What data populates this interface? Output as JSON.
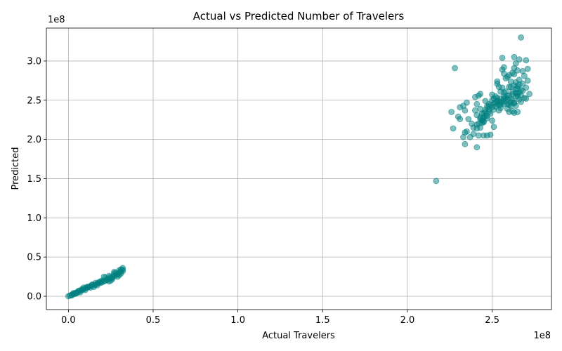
{
  "chart_data": {
    "type": "scatter",
    "title": "Actual vs Predicted Number of Travelers",
    "xlabel": "Actual Travelers",
    "ylabel": "Predicted",
    "x_offset_label": "1e8",
    "y_offset_label": "1e8",
    "xlim": [
      -0.13,
      2.85
    ],
    "ylim": [
      -0.17,
      3.42
    ],
    "x_ticks": [
      0.0,
      0.5,
      1.0,
      1.5,
      2.0,
      2.5
    ],
    "x_tick_labels": [
      "0.0",
      "0.5",
      "1.0",
      "1.5",
      "2.0",
      "2.5"
    ],
    "y_ticks": [
      0.0,
      0.5,
      1.0,
      1.5,
      2.0,
      2.5,
      3.0
    ],
    "y_tick_labels": [
      "0.0",
      "0.5",
      "1.0",
      "1.5",
      "2.0",
      "2.5",
      "3.0"
    ],
    "grid": true,
    "marker_color": "#008080",
    "marker_opacity": 0.5,
    "series": [
      {
        "points": [
          [
            0.0,
            0.0
          ],
          [
            0.01,
            0.01
          ],
          [
            0.02,
            0.02
          ],
          [
            0.03,
            0.03
          ],
          [
            0.04,
            0.04
          ],
          [
            0.05,
            0.05
          ],
          [
            0.06,
            0.06
          ],
          [
            0.07,
            0.07
          ],
          [
            0.08,
            0.08
          ],
          [
            0.09,
            0.09
          ],
          [
            0.1,
            0.1
          ],
          [
            0.11,
            0.11
          ],
          [
            0.12,
            0.12
          ],
          [
            0.13,
            0.13
          ],
          [
            0.14,
            0.14
          ],
          [
            0.15,
            0.14
          ],
          [
            0.16,
            0.15
          ],
          [
            0.17,
            0.16
          ],
          [
            0.18,
            0.17
          ],
          [
            0.19,
            0.17
          ],
          [
            0.2,
            0.18
          ],
          [
            0.21,
            0.19
          ],
          [
            0.22,
            0.2
          ],
          [
            0.23,
            0.21
          ],
          [
            0.24,
            0.22
          ],
          [
            0.25,
            0.23
          ],
          [
            0.26,
            0.24
          ],
          [
            0.27,
            0.26
          ],
          [
            0.28,
            0.27
          ],
          [
            0.29,
            0.28
          ],
          [
            0.3,
            0.3
          ],
          [
            0.31,
            0.32
          ],
          [
            0.32,
            0.34
          ],
          [
            0.32,
            0.36
          ],
          [
            0.31,
            0.34
          ],
          [
            0.3,
            0.33
          ],
          [
            0.28,
            0.3
          ],
          [
            0.27,
            0.29
          ],
          [
            0.25,
            0.25
          ],
          [
            0.24,
            0.26
          ],
          [
            0.23,
            0.22
          ],
          [
            0.22,
            0.24
          ],
          [
            0.21,
            0.25
          ],
          [
            0.2,
            0.2
          ],
          [
            0.18,
            0.18
          ],
          [
            0.16,
            0.17
          ],
          [
            0.15,
            0.12
          ],
          [
            0.14,
            0.15
          ],
          [
            0.12,
            0.12
          ],
          [
            0.11,
            0.12
          ],
          [
            0.09,
            0.11
          ],
          [
            0.08,
            0.09
          ],
          [
            0.06,
            0.07
          ],
          [
            0.05,
            0.04
          ],
          [
            0.03,
            0.04
          ],
          [
            0.02,
            0.01
          ],
          [
            0.29,
            0.25
          ],
          [
            0.26,
            0.22
          ],
          [
            0.24,
            0.19
          ],
          [
            0.3,
            0.27
          ],
          [
            0.27,
            0.31
          ],
          [
            0.25,
            0.2
          ],
          [
            0.19,
            0.19
          ],
          [
            0.13,
            0.11
          ],
          [
            0.1,
            0.08
          ],
          [
            0.07,
            0.05
          ],
          [
            0.04,
            0.03
          ],
          [
            0.17,
            0.14
          ],
          [
            0.31,
            0.29
          ],
          [
            0.32,
            0.32
          ],
          [
            2.17,
            1.47
          ],
          [
            2.28,
            2.91
          ],
          [
            2.26,
            2.35
          ],
          [
            2.27,
            2.14
          ],
          [
            2.3,
            2.29
          ],
          [
            2.31,
            2.41
          ],
          [
            2.31,
            2.26
          ],
          [
            2.33,
            2.43
          ],
          [
            2.33,
            2.03
          ],
          [
            2.34,
            2.09
          ],
          [
            2.34,
            1.94
          ],
          [
            2.34,
            2.37
          ],
          [
            2.35,
            2.47
          ],
          [
            2.35,
            2.1
          ],
          [
            2.36,
            2.26
          ],
          [
            2.37,
            2.03
          ],
          [
            2.38,
            2.2
          ],
          [
            2.39,
            2.07
          ],
          [
            2.39,
            2.15
          ],
          [
            2.4,
            2.37
          ],
          [
            2.4,
            2.54
          ],
          [
            2.41,
            2.45
          ],
          [
            2.41,
            2.31
          ],
          [
            2.41,
            1.9
          ],
          [
            2.41,
            2.14
          ],
          [
            2.41,
            2.19
          ],
          [
            2.42,
            2.05
          ],
          [
            2.42,
            2.56
          ],
          [
            2.43,
            2.39
          ],
          [
            2.43,
            2.26
          ],
          [
            2.43,
            2.28
          ],
          [
            2.43,
            2.58
          ],
          [
            2.44,
            2.24
          ],
          [
            2.44,
            2.21
          ],
          [
            2.44,
            2.33
          ],
          [
            2.45,
            2.23
          ],
          [
            2.45,
            2.28
          ],
          [
            2.45,
            2.22
          ],
          [
            2.45,
            2.05
          ],
          [
            2.46,
            2.35
          ],
          [
            2.46,
            2.3
          ],
          [
            2.46,
            2.49
          ],
          [
            2.47,
            2.27
          ],
          [
            2.47,
            2.42
          ],
          [
            2.47,
            2.05
          ],
          [
            2.48,
            2.38
          ],
          [
            2.48,
            2.45
          ],
          [
            2.48,
            2.35
          ],
          [
            2.49,
            2.06
          ],
          [
            2.49,
            2.44
          ],
          [
            2.5,
            2.24
          ],
          [
            2.5,
            2.41
          ],
          [
            2.5,
            2.57
          ],
          [
            2.51,
            2.38
          ],
          [
            2.51,
            2.52
          ],
          [
            2.51,
            2.16
          ],
          [
            2.52,
            2.42
          ],
          [
            2.52,
            2.47
          ],
          [
            2.53,
            2.74
          ],
          [
            2.53,
            2.71
          ],
          [
            2.53,
            2.53
          ],
          [
            2.54,
            2.49
          ],
          [
            2.54,
            2.37
          ],
          [
            2.54,
            2.67
          ],
          [
            2.55,
            2.4
          ],
          [
            2.55,
            2.52
          ],
          [
            2.55,
            2.61
          ],
          [
            2.56,
            3.04
          ],
          [
            2.56,
            2.89
          ],
          [
            2.56,
            2.66
          ],
          [
            2.57,
            2.84
          ],
          [
            2.57,
            2.92
          ],
          [
            2.57,
            2.6
          ],
          [
            2.57,
            2.45
          ],
          [
            2.58,
            2.78
          ],
          [
            2.58,
            2.49
          ],
          [
            2.58,
            2.53
          ],
          [
            2.59,
            2.8
          ],
          [
            2.59,
            2.39
          ],
          [
            2.59,
            2.56
          ],
          [
            2.6,
            2.35
          ],
          [
            2.6,
            2.67
          ],
          [
            2.6,
            2.82
          ],
          [
            2.6,
            2.44
          ],
          [
            2.61,
            2.52
          ],
          [
            2.61,
            2.74
          ],
          [
            2.61,
            2.67
          ],
          [
            2.62,
            2.85
          ],
          [
            2.62,
            2.58
          ],
          [
            2.62,
            2.36
          ],
          [
            2.62,
            2.61
          ],
          [
            2.63,
            3.05
          ],
          [
            2.63,
            2.83
          ],
          [
            2.63,
            2.91
          ],
          [
            2.63,
            2.47
          ],
          [
            2.63,
            2.34
          ],
          [
            2.64,
            2.73
          ],
          [
            2.64,
            2.64
          ],
          [
            2.64,
            2.55
          ],
          [
            2.64,
            2.97
          ],
          [
            2.65,
            2.68
          ],
          [
            2.65,
            2.35
          ],
          [
            2.65,
            2.88
          ],
          [
            2.65,
            2.58
          ],
          [
            2.66,
            2.51
          ],
          [
            2.66,
            3.02
          ],
          [
            2.66,
            2.76
          ],
          [
            2.67,
            3.3
          ],
          [
            2.67,
            2.63
          ],
          [
            2.67,
            2.48
          ],
          [
            2.68,
            2.87
          ],
          [
            2.68,
            2.71
          ],
          [
            2.69,
            2.53
          ],
          [
            2.69,
            2.81
          ],
          [
            2.7,
            3.01
          ],
          [
            2.7,
            2.52
          ],
          [
            2.7,
            2.66
          ],
          [
            2.71,
            2.75
          ],
          [
            2.71,
            2.9
          ],
          [
            2.72,
            2.58
          ],
          [
            2.64,
            2.43
          ],
          [
            2.62,
            2.5
          ],
          [
            2.59,
            2.45
          ],
          [
            2.57,
            2.55
          ],
          [
            2.55,
            2.47
          ],
          [
            2.53,
            2.45
          ],
          [
            2.52,
            2.55
          ],
          [
            2.5,
            2.5
          ],
          [
            2.48,
            2.42
          ],
          [
            2.46,
            2.38
          ],
          [
            2.44,
            2.25
          ],
          [
            2.42,
            2.2
          ],
          [
            2.66,
            2.6
          ],
          [
            2.65,
            2.55
          ],
          [
            2.63,
            2.69
          ],
          [
            2.61,
            2.43
          ],
          [
            2.6,
            2.56
          ],
          [
            2.58,
            2.61
          ],
          [
            2.56,
            2.48
          ],
          [
            2.54,
            2.44
          ],
          [
            2.43,
            2.15
          ],
          [
            2.45,
            2.33
          ],
          [
            2.47,
            2.3
          ],
          [
            2.49,
            2.33
          ],
          [
            2.51,
            2.46
          ],
          [
            2.53,
            2.49
          ],
          [
            2.55,
            2.44
          ],
          [
            2.57,
            2.52
          ],
          [
            2.59,
            2.51
          ],
          [
            2.61,
            2.47
          ],
          [
            2.63,
            2.46
          ],
          [
            2.64,
            2.59
          ],
          [
            2.65,
            2.65
          ],
          [
            2.66,
            2.7
          ],
          [
            2.67,
            2.56
          ],
          [
            2.68,
            2.62
          ]
        ]
      }
    ]
  }
}
